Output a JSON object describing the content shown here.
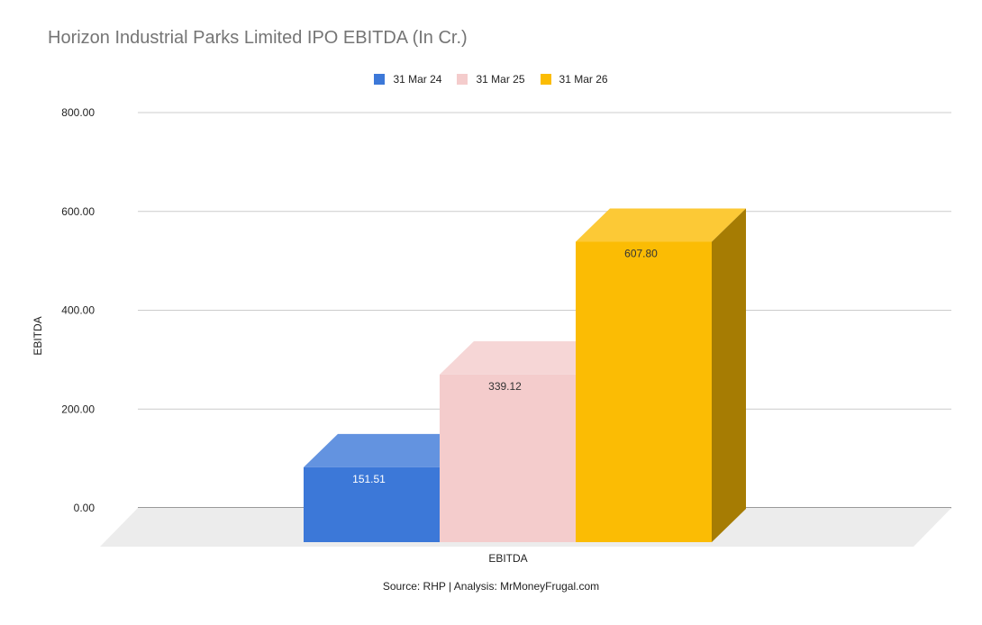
{
  "chart_data": {
    "type": "bar",
    "title": "Horizon Industrial Parks Limited IPO EBITDA (In Cr.)",
    "categories": [
      "EBITDA"
    ],
    "series": [
      {
        "name": "31 Mar 24",
        "values": [
          151.51
        ],
        "value_label": "151.51",
        "color": "#3c78d8"
      },
      {
        "name": "31 Mar 25",
        "values": [
          339.12
        ],
        "value_label": "339.12",
        "color": "#f4cccc"
      },
      {
        "name": "31 Mar 26",
        "values": [
          607.8
        ],
        "value_label": "607.80",
        "color": "#fbbc04"
      }
    ],
    "xlabel": "EBITDA",
    "ylabel": "EBITDA",
    "ylim": [
      0,
      800
    ],
    "yticks": [
      "0.00",
      "200.00",
      "400.00",
      "600.00",
      "800.00"
    ],
    "grid": true,
    "legend_position": "top",
    "style": "3d"
  },
  "footer": {
    "source": "Source: RHP | Analysis: MrMoneyFrugal.com"
  }
}
